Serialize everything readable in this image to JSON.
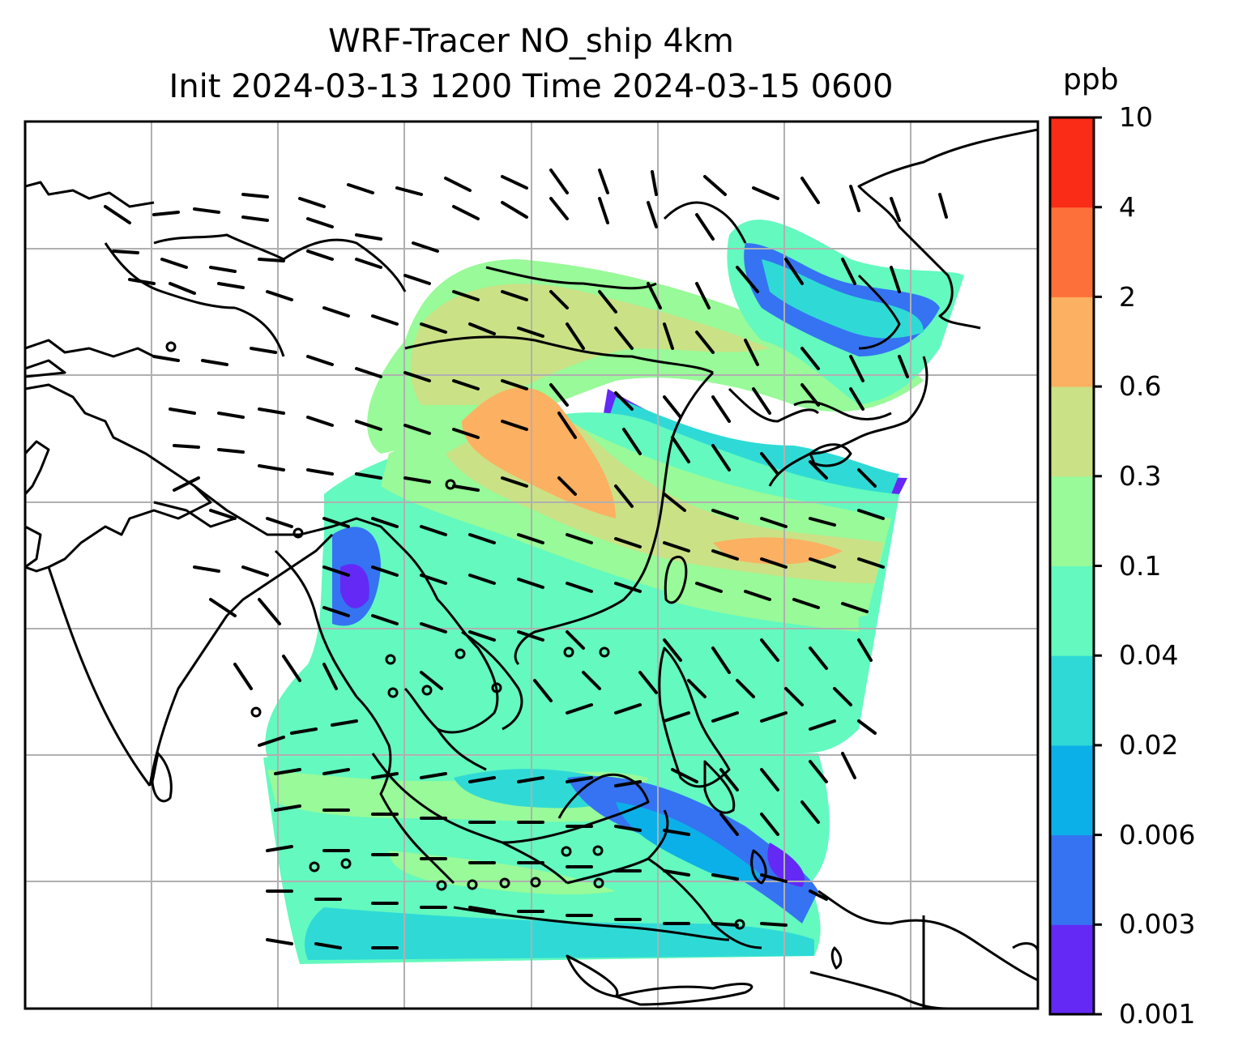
{
  "title": {
    "line1": "WRF-Tracer NO_ship 4km",
    "line2": "Init 2024-03-13 1200 Time 2024-03-15 0600"
  },
  "colorbar": {
    "unit": "ppb",
    "tick_labels": [
      "10",
      "4",
      "2",
      "0.6",
      "0.3",
      "0.1",
      "0.04",
      "0.02",
      "0.006",
      "0.003",
      "0.001"
    ],
    "bin_colors_bottom_to_top": [
      "#6429f5",
      "#3573f2",
      "#0cb0e8",
      "#2fdad6",
      "#63f9bf",
      "#98fa98",
      "#cbe186",
      "#fcb061",
      "#fd7039",
      "#fa2b17"
    ]
  },
  "map": {
    "coastline_color": "#000000",
    "gridline_color": "#b0b0b0",
    "calm_wind_symbol": "circle",
    "wind_barbs": "black"
  }
}
